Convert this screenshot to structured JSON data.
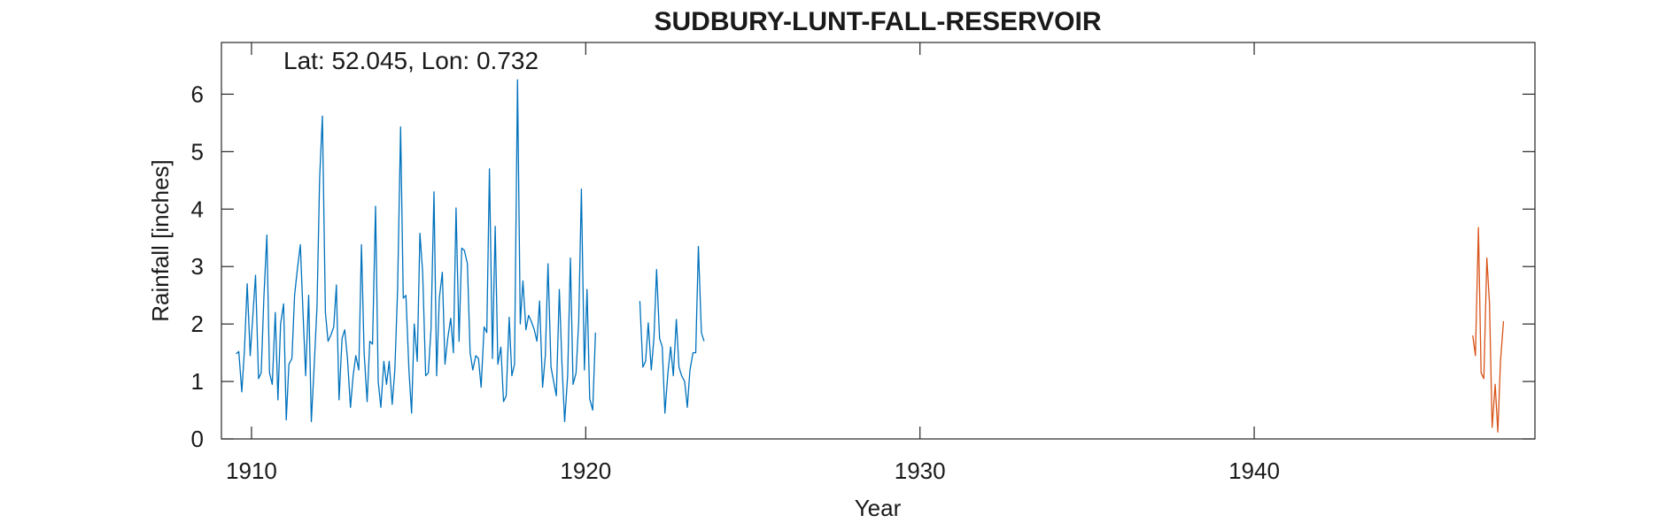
{
  "chart_data": {
    "type": "line",
    "title": "SUDBURY-LUNT-FALL-RESERVOIR",
    "xlabel": "Year",
    "ylabel": "Rainfall [inches]",
    "annotation": "Lat: 52.045, Lon: 0.732",
    "xlim": [
      1909.1,
      1948.4
    ],
    "ylim": [
      0,
      6.9
    ],
    "xticks": [
      1910,
      1920,
      1930,
      1940
    ],
    "yticks": [
      0,
      1,
      2,
      3,
      4,
      5,
      6
    ],
    "grid": false,
    "series": [
      {
        "color": "#0072BD",
        "segments": [
          [
            [
              1909.54,
              1.48
            ],
            [
              1909.62,
              1.52
            ],
            [
              1909.71,
              0.82
            ],
            [
              1909.79,
              1.55
            ],
            [
              1909.87,
              2.7
            ],
            [
              1909.96,
              1.45
            ],
            [
              1910.04,
              2.15
            ],
            [
              1910.12,
              2.85
            ],
            [
              1910.21,
              1.05
            ],
            [
              1910.29,
              1.15
            ],
            [
              1910.37,
              2.45
            ],
            [
              1910.46,
              3.55
            ],
            [
              1910.54,
              1.15
            ],
            [
              1910.62,
              0.95
            ],
            [
              1910.71,
              2.2
            ],
            [
              1910.79,
              0.68
            ],
            [
              1910.87,
              2.0
            ],
            [
              1910.96,
              2.35
            ],
            [
              1911.04,
              0.33
            ],
            [
              1911.12,
              1.3
            ],
            [
              1911.21,
              1.4
            ],
            [
              1911.29,
              2.5
            ],
            [
              1911.37,
              2.95
            ],
            [
              1911.46,
              3.38
            ],
            [
              1911.54,
              2.2
            ],
            [
              1911.62,
              1.1
            ],
            [
              1911.71,
              2.5
            ],
            [
              1911.79,
              0.3
            ],
            [
              1911.87,
              1.2
            ],
            [
              1911.96,
              2.3
            ],
            [
              1912.04,
              4.55
            ],
            [
              1912.12,
              5.62
            ],
            [
              1912.21,
              2.2
            ],
            [
              1912.29,
              1.7
            ],
            [
              1912.37,
              1.8
            ],
            [
              1912.46,
              1.95
            ],
            [
              1912.54,
              2.68
            ],
            [
              1912.62,
              0.68
            ],
            [
              1912.71,
              1.75
            ],
            [
              1912.79,
              1.9
            ],
            [
              1912.87,
              1.4
            ],
            [
              1912.96,
              0.55
            ],
            [
              1913.04,
              1.1
            ],
            [
              1913.12,
              1.45
            ],
            [
              1913.21,
              1.2
            ],
            [
              1913.29,
              3.38
            ],
            [
              1913.37,
              1.5
            ],
            [
              1913.46,
              0.65
            ],
            [
              1913.54,
              1.7
            ],
            [
              1913.62,
              1.65
            ],
            [
              1913.71,
              4.05
            ],
            [
              1913.79,
              1.0
            ],
            [
              1913.87,
              0.55
            ],
            [
              1913.96,
              1.35
            ],
            [
              1914.04,
              0.95
            ],
            [
              1914.12,
              1.35
            ],
            [
              1914.21,
              0.6
            ],
            [
              1914.29,
              1.2
            ],
            [
              1914.37,
              2.6
            ],
            [
              1914.46,
              5.43
            ],
            [
              1914.54,
              2.45
            ],
            [
              1914.62,
              2.5
            ],
            [
              1914.71,
              1.2
            ],
            [
              1914.79,
              0.45
            ],
            [
              1914.87,
              2.0
            ],
            [
              1914.96,
              1.35
            ],
            [
              1915.04,
              3.58
            ],
            [
              1915.12,
              2.9
            ],
            [
              1915.21,
              1.1
            ],
            [
              1915.29,
              1.15
            ],
            [
              1915.37,
              1.9
            ],
            [
              1915.46,
              4.3
            ],
            [
              1915.54,
              1.1
            ],
            [
              1915.62,
              2.45
            ],
            [
              1915.71,
              2.9
            ],
            [
              1915.79,
              1.3
            ],
            [
              1915.87,
              1.75
            ],
            [
              1915.96,
              2.1
            ],
            [
              1916.04,
              1.5
            ],
            [
              1916.12,
              4.02
            ],
            [
              1916.21,
              1.7
            ],
            [
              1916.29,
              3.32
            ],
            [
              1916.37,
              3.28
            ],
            [
              1916.46,
              3.05
            ],
            [
              1916.54,
              1.5
            ],
            [
              1916.62,
              1.2
            ],
            [
              1916.71,
              1.45
            ],
            [
              1916.79,
              1.4
            ],
            [
              1916.87,
              0.9
            ],
            [
              1916.96,
              1.95
            ],
            [
              1917.04,
              1.85
            ],
            [
              1917.12,
              4.7
            ],
            [
              1917.21,
              1.4
            ],
            [
              1917.29,
              3.7
            ],
            [
              1917.37,
              1.3
            ],
            [
              1917.46,
              1.6
            ],
            [
              1917.54,
              0.65
            ],
            [
              1917.62,
              0.75
            ],
            [
              1917.71,
              2.12
            ],
            [
              1917.79,
              1.1
            ],
            [
              1917.87,
              1.3
            ],
            [
              1917.96,
              6.25
            ],
            [
              1918.04,
              2.0
            ],
            [
              1918.12,
              2.75
            ],
            [
              1918.21,
              1.9
            ],
            [
              1918.29,
              2.15
            ],
            [
              1918.37,
              2.05
            ],
            [
              1918.46,
              1.9
            ],
            [
              1918.54,
              1.7
            ],
            [
              1918.62,
              2.4
            ],
            [
              1918.71,
              0.9
            ],
            [
              1918.79,
              1.45
            ],
            [
              1918.87,
              3.05
            ],
            [
              1918.96,
              1.25
            ],
            [
              1919.04,
              1.0
            ],
            [
              1919.12,
              0.75
            ],
            [
              1919.21,
              2.6
            ],
            [
              1919.29,
              1.3
            ],
            [
              1919.37,
              0.3
            ],
            [
              1919.46,
              1.1
            ],
            [
              1919.54,
              3.15
            ],
            [
              1919.62,
              0.95
            ],
            [
              1919.71,
              1.15
            ],
            [
              1919.79,
              2.05
            ],
            [
              1919.87,
              4.35
            ],
            [
              1919.96,
              1.2
            ],
            [
              1920.04,
              2.6
            ],
            [
              1920.12,
              0.7
            ],
            [
              1920.21,
              0.5
            ],
            [
              1920.29,
              1.85
            ]
          ],
          [
            [
              1921.62,
              2.4
            ],
            [
              1921.71,
              1.25
            ],
            [
              1921.79,
              1.35
            ],
            [
              1921.87,
              2.02
            ],
            [
              1921.96,
              1.2
            ],
            [
              1922.04,
              1.75
            ],
            [
              1922.12,
              2.95
            ],
            [
              1922.21,
              1.75
            ],
            [
              1922.29,
              1.6
            ],
            [
              1922.37,
              0.45
            ],
            [
              1922.46,
              1.15
            ],
            [
              1922.54,
              1.6
            ],
            [
              1922.62,
              1.1
            ],
            [
              1922.71,
              2.08
            ],
            [
              1922.79,
              1.25
            ],
            [
              1922.87,
              1.1
            ],
            [
              1922.96,
              1.0
            ],
            [
              1923.04,
              0.55
            ],
            [
              1923.12,
              1.2
            ],
            [
              1923.21,
              1.5
            ],
            [
              1923.29,
              1.5
            ],
            [
              1923.37,
              3.35
            ],
            [
              1923.46,
              1.85
            ],
            [
              1923.54,
              1.7
            ]
          ]
        ]
      },
      {
        "color": "#D95319",
        "segments": [
          [
            [
              1946.54,
              1.8
            ],
            [
              1946.62,
              1.45
            ],
            [
              1946.71,
              3.68
            ],
            [
              1946.79,
              1.15
            ],
            [
              1946.87,
              1.05
            ],
            [
              1946.96,
              3.15
            ],
            [
              1947.04,
              2.35
            ],
            [
              1947.12,
              0.2
            ],
            [
              1947.21,
              0.95
            ],
            [
              1947.29,
              0.12
            ],
            [
              1947.37,
              1.35
            ],
            [
              1947.46,
              2.05
            ]
          ]
        ]
      }
    ]
  }
}
